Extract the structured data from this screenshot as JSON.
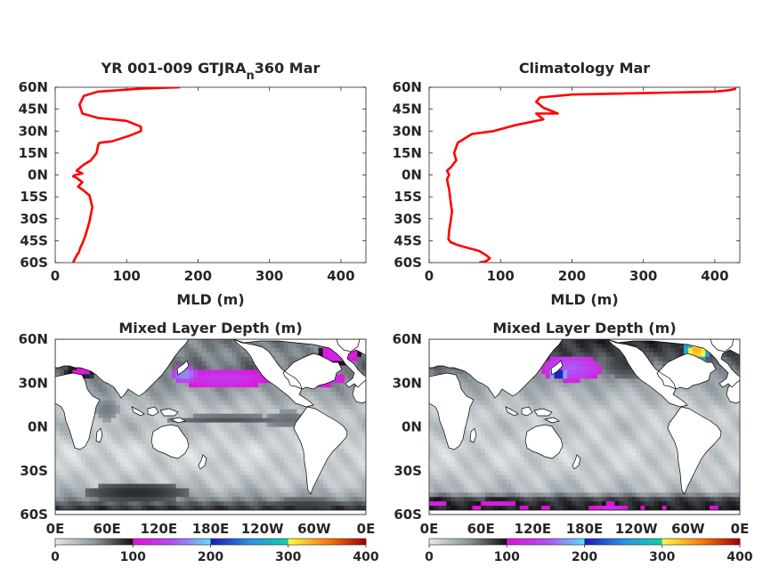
{
  "colors": {
    "profile_line": "#ff0000",
    "land": "#ffffff",
    "colormap": [
      {
        "v": 0,
        "c": "#e6eaeb"
      },
      {
        "v": 50,
        "c": "#8e979c"
      },
      {
        "v": 100,
        "c": "#111014"
      },
      {
        "v": 100,
        "c": "#e010d8"
      },
      {
        "v": 150,
        "c": "#b44cf4"
      },
      {
        "v": 200,
        "c": "#58e0f4"
      },
      {
        "v": 200,
        "c": "#1a1ab8"
      },
      {
        "v": 250,
        "c": "#2f8fe6"
      },
      {
        "v": 300,
        "c": "#10d0a8"
      },
      {
        "v": 300,
        "c": "#ffff40"
      },
      {
        "v": 350,
        "c": "#ff7a10"
      },
      {
        "v": 400,
        "c": "#a00000"
      }
    ]
  },
  "chart_data": [
    {
      "type": "line",
      "title_main": "YR 001-009 GTJRA",
      "title_sub": "n",
      "title_tail": "360 Mar",
      "xlabel": "MLD (m)",
      "xlim": [
        0,
        435
      ],
      "ylim": [
        -60,
        60
      ],
      "xticks": [
        0,
        100,
        200,
        300,
        400
      ],
      "yticks": [
        60,
        45,
        30,
        15,
        0,
        -15,
        -30,
        -45,
        -60
      ],
      "yticklabels": [
        "60N",
        "45N",
        "30N",
        "15N",
        "0N",
        "15S",
        "30S",
        "45S",
        "60S"
      ],
      "series": [
        {
          "x": [
            175,
            120,
            60,
            40,
            38,
            34,
            38,
            60,
            100,
            120,
            120,
            105,
            80,
            62,
            60,
            58,
            50,
            40,
            35,
            30,
            38,
            28,
            25,
            30,
            38,
            32,
            38,
            48,
            50,
            52,
            50,
            48,
            45,
            42,
            38,
            35,
            33,
            30,
            27,
            25
          ],
          "y": [
            60,
            59,
            57,
            54,
            52,
            48,
            42,
            39,
            37,
            33,
            30,
            27,
            23,
            22,
            20,
            15,
            10,
            7,
            5,
            3,
            1,
            0,
            -1,
            -2,
            -5,
            -8,
            -10,
            -14,
            -18,
            -22,
            -27,
            -32,
            -37,
            -42,
            -47,
            -50,
            -53,
            -55,
            -58,
            -60
          ]
        }
      ]
    },
    {
      "type": "line",
      "title_main": "Climatology Mar",
      "title_sub": "",
      "title_tail": "",
      "xlabel": "MLD (m)",
      "xlim": [
        0,
        435
      ],
      "ylim": [
        -60,
        60
      ],
      "xticks": [
        0,
        100,
        200,
        300,
        400
      ],
      "yticks": [
        60,
        45,
        30,
        15,
        0,
        -15,
        -30,
        -45,
        -60
      ],
      "yticklabels": [
        "60N",
        "45N",
        "30N",
        "15N",
        "0N",
        "15S",
        "30S",
        "45S",
        "60S"
      ],
      "series": [
        {
          "x": [
            430,
            420,
            400,
            300,
            200,
            155,
            150,
            160,
            180,
            150,
            160,
            120,
            90,
            60,
            40,
            35,
            38,
            30,
            25,
            28,
            25,
            28,
            30,
            32,
            30,
            28,
            27,
            30,
            40,
            55,
            70,
            80,
            85,
            80,
            70
          ],
          "y": [
            59,
            58,
            57,
            56,
            55,
            53,
            50,
            46,
            42,
            42,
            38,
            34,
            30,
            28,
            22,
            15,
            10,
            5,
            3,
            0,
            -3,
            -10,
            -18,
            -25,
            -32,
            -38,
            -44,
            -46,
            -48,
            -50,
            -52,
            -55,
            -57,
            -59,
            -60
          ]
        }
      ]
    },
    {
      "type": "heatmap",
      "title_main": "Mixed Layer Depth (m)",
      "xticklabels": [
        "0E",
        "60E",
        "120E",
        "180E",
        "120W",
        "60W",
        "0E"
      ],
      "yticklabels": [
        "60N",
        "30N",
        "0N",
        "30S",
        "60S"
      ],
      "yticks": [
        60,
        30,
        0,
        -30,
        -60
      ],
      "colorbar_ticks": [
        "0",
        "100",
        "200",
        "300",
        "400"
      ],
      "colorbar_range": [
        0,
        400
      ],
      "ranges": {
        "lat": [
          -60,
          60
        ],
        "lon": [
          0,
          360
        ]
      },
      "base_values": [
        [
          -60,
          80
        ],
        [
          -55,
          85
        ],
        [
          -48,
          45
        ],
        [
          -40,
          25
        ],
        [
          -30,
          18
        ],
        [
          -15,
          12
        ],
        [
          0,
          28
        ],
        [
          10,
          22
        ],
        [
          25,
          45
        ],
        [
          40,
          65
        ],
        [
          50,
          55
        ],
        [
          60,
          60
        ]
      ],
      "features": [
        {
          "lon": 195,
          "lat": 33,
          "rlon": 55,
          "rlat": 7,
          "v": 135
        },
        {
          "lon": 150,
          "lat": 36,
          "rlon": 15,
          "rlat": 6,
          "v": 175
        },
        {
          "lon": 310,
          "lat": 33,
          "rlon": 25,
          "rlat": 5,
          "v": 140
        },
        {
          "lon": 330,
          "lat": 50,
          "rlon": 25,
          "rlat": 7,
          "v": 125
        },
        {
          "lon": 30,
          "lat": 38,
          "rlon": 20,
          "rlat": 5,
          "v": 110
        },
        {
          "lon": 200,
          "lat": 5,
          "rlon": 70,
          "rlat": 3,
          "v": 75
        },
        {
          "lon": 270,
          "lat": 5,
          "rlon": 30,
          "rlat": 6,
          "v": 65
        },
        {
          "lon": 60,
          "lat": 12,
          "rlon": 15,
          "rlat": 8,
          "v": 60
        },
        {
          "lon": 95,
          "lat": -45,
          "rlon": 60,
          "rlat": 7,
          "v": 90
        },
        {
          "lon": 290,
          "lat": -55,
          "rlon": 60,
          "rlat": 6,
          "v": 85
        }
      ]
    },
    {
      "type": "heatmap",
      "title_main": "Mixed Layer Depth (m)",
      "xticklabels": [
        "0E",
        "60E",
        "120E",
        "180E",
        "120W",
        "60W",
        "0E"
      ],
      "yticklabels": [
        "60N",
        "30N",
        "0N",
        "30S",
        "60S"
      ],
      "yticks": [
        60,
        30,
        0,
        -30,
        -60
      ],
      "colorbar_ticks": [
        "0",
        "100",
        "200",
        "300",
        "400"
      ],
      "colorbar_range": [
        0,
        400
      ],
      "ranges": {
        "lat": [
          -60,
          60
        ],
        "lon": [
          0,
          360
        ]
      },
      "base_values": [
        [
          -60,
          40
        ],
        [
          -56,
          95
        ],
        [
          -50,
          85
        ],
        [
          -44,
          30
        ],
        [
          -30,
          18
        ],
        [
          -15,
          15
        ],
        [
          0,
          22
        ],
        [
          10,
          18
        ],
        [
          25,
          35
        ],
        [
          40,
          60
        ],
        [
          50,
          80
        ],
        [
          60,
          90
        ]
      ],
      "features": [
        {
          "lon": 165,
          "lat": 40,
          "rlon": 35,
          "rlat": 9,
          "v": 155
        },
        {
          "lon": 150,
          "lat": 36,
          "rlon": 10,
          "rlat": 4,
          "v": 215
        },
        {
          "lon": 295,
          "lat": 38,
          "rlon": 18,
          "rlat": 7,
          "v": 170
        },
        {
          "lon": 310,
          "lat": 52,
          "rlon": 15,
          "rlat": 8,
          "v": 330
        },
        {
          "lon": 325,
          "lat": 58,
          "rlon": 15,
          "rlat": 4,
          "v": 390
        },
        {
          "lon": 230,
          "lat": 45,
          "rlon": 30,
          "rlat": 12,
          "v": 85
        },
        {
          "lon": 210,
          "lat": -55,
          "rlon": 20,
          "rlat": 3,
          "v": 125
        },
        {
          "lon": 80,
          "lat": -52,
          "rlon": 30,
          "rlat": 3,
          "v": 115
        },
        {
          "lon": 10,
          "lat": -52,
          "rlon": 15,
          "rlat": 3,
          "v": 120
        }
      ]
    }
  ]
}
